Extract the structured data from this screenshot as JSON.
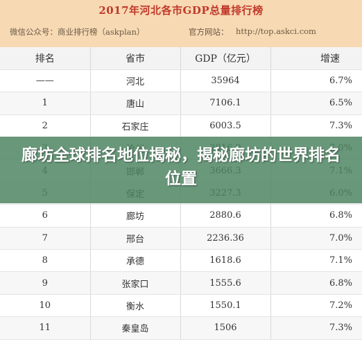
{
  "header": {
    "title": "2017年河北各市GDP总量排行榜",
    "wechat": "微信公众号：商业排行榜（askplan）",
    "website_label": "官方网站：",
    "website_url": "http://top.askci.com"
  },
  "table": {
    "columns": [
      "排名",
      "省市",
      "GDP（亿元）",
      "增速"
    ],
    "rows": [
      [
        "——",
        "河北",
        "35964",
        "6.7%"
      ],
      [
        "1",
        "唐山",
        "7106.1",
        "6.5%"
      ],
      [
        "2",
        "石家庄",
        "6003.5",
        "7.3%"
      ],
      [
        "3",
        "沧州",
        "3816.9",
        "7.0%"
      ],
      [
        "4",
        "邯郸",
        "3666.3",
        "7.1%"
      ],
      [
        "5",
        "保定",
        "3227.3",
        "6.0%"
      ],
      [
        "6",
        "廊坊",
        "2880.6",
        "6.8%"
      ],
      [
        "7",
        "邢台",
        "2236.36",
        "7.0%"
      ],
      [
        "8",
        "承德",
        "1618.6",
        "7.1%"
      ],
      [
        "9",
        "张家口",
        "1555.6",
        "6.8%"
      ],
      [
        "10",
        "衡水",
        "1550.1",
        "7.2%"
      ],
      [
        "11",
        "秦皇岛",
        "1506",
        "7.3%"
      ]
    ]
  },
  "overlay": {
    "headline": "廊坊全球排名地位揭秘，揭秘廊坊的世界排名位置"
  }
}
